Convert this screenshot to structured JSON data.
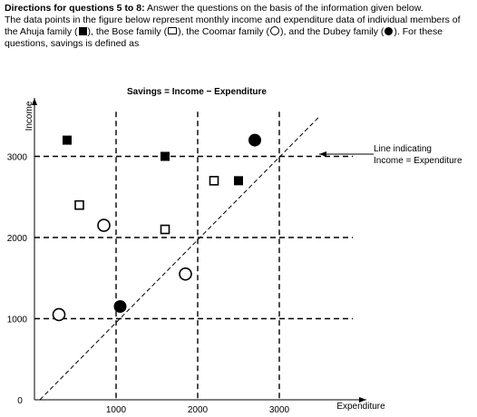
{
  "directions": {
    "heading": "Directions for questions 5 to 8:",
    "line1_rest": " Answer the questions on the basis of the information given below.",
    "line2_a": "The data points in the figure below represent monthly income and expenditure data of individual members of the Ahuja family (",
    "line2_b": "), the Bose family (",
    "line2_c": "), the Coomar family (",
    "line2_d": "), and the Dubey family (",
    "line2_e": "). For these questions, savings is defined as"
  },
  "chart_data": {
    "type": "scatter",
    "title": "Savings = Income − Expenditure",
    "xlabel": "Expenditure",
    "ylabel": "Income",
    "xlim": [
      0,
      3900
    ],
    "ylim": [
      0,
      3550
    ],
    "xticks": [
      1000,
      2000,
      3000
    ],
    "yticks": [
      1000,
      2000,
      3000
    ],
    "origin_label": "0",
    "gridlines": [
      1000,
      2000,
      3000
    ],
    "grid": "dashed",
    "series": [
      {
        "name": "Ahuja",
        "marker": "filled-square",
        "points": [
          [
            400,
            3200
          ],
          [
            1600,
            3000
          ],
          [
            2500,
            2700
          ]
        ]
      },
      {
        "name": "Bose",
        "marker": "open-square",
        "points": [
          [
            550,
            2400
          ],
          [
            1600,
            2100
          ],
          [
            2200,
            2700
          ]
        ]
      },
      {
        "name": "Coomar",
        "marker": "open-circle",
        "points": [
          [
            300,
            1050
          ],
          [
            850,
            2150
          ],
          [
            1850,
            1550
          ]
        ]
      },
      {
        "name": "Dubey",
        "marker": "filled-circle",
        "points": [
          [
            1050,
            1150
          ],
          [
            2700,
            3200
          ]
        ]
      }
    ],
    "reference_line": {
      "label_line1": "Line indicating",
      "label_line2": "Income = Expenditure",
      "from": [
        0,
        0
      ],
      "to": [
        3500,
        3500
      ]
    }
  }
}
